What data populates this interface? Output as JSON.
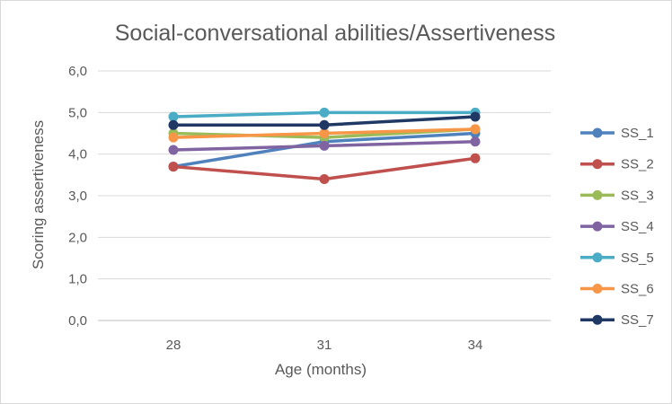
{
  "chart_data": {
    "type": "line",
    "title": "Social-conversational abilities/Assertiveness",
    "xlabel": "Age (months)",
    "ylabel": "Scoring assertiveness",
    "categories": [
      "28",
      "31",
      "34"
    ],
    "ylim": [
      0,
      6
    ],
    "yticks": [
      "0,0",
      "1,0",
      "2,0",
      "3,0",
      "4,0",
      "5,0",
      "6,0"
    ],
    "grid": true,
    "legend_position": "right",
    "series": [
      {
        "name": "SS_1",
        "color": "#4f81bd",
        "values": [
          3.7,
          4.3,
          4.5
        ]
      },
      {
        "name": "SS_2",
        "color": "#c0504d",
        "values": [
          3.7,
          3.4,
          3.9
        ]
      },
      {
        "name": "SS_3",
        "color": "#9bbb59",
        "values": [
          4.5,
          4.4,
          4.6
        ]
      },
      {
        "name": "SS_4",
        "color": "#8064a2",
        "values": [
          4.1,
          4.2,
          4.3
        ]
      },
      {
        "name": "SS_5",
        "color": "#4bacc6",
        "values": [
          4.9,
          5.0,
          5.0
        ]
      },
      {
        "name": "SS_6",
        "color": "#f79646",
        "values": [
          4.4,
          4.5,
          4.6
        ]
      },
      {
        "name": "SS_7",
        "color": "#1f3864",
        "values": [
          4.7,
          4.7,
          4.9
        ]
      }
    ]
  }
}
